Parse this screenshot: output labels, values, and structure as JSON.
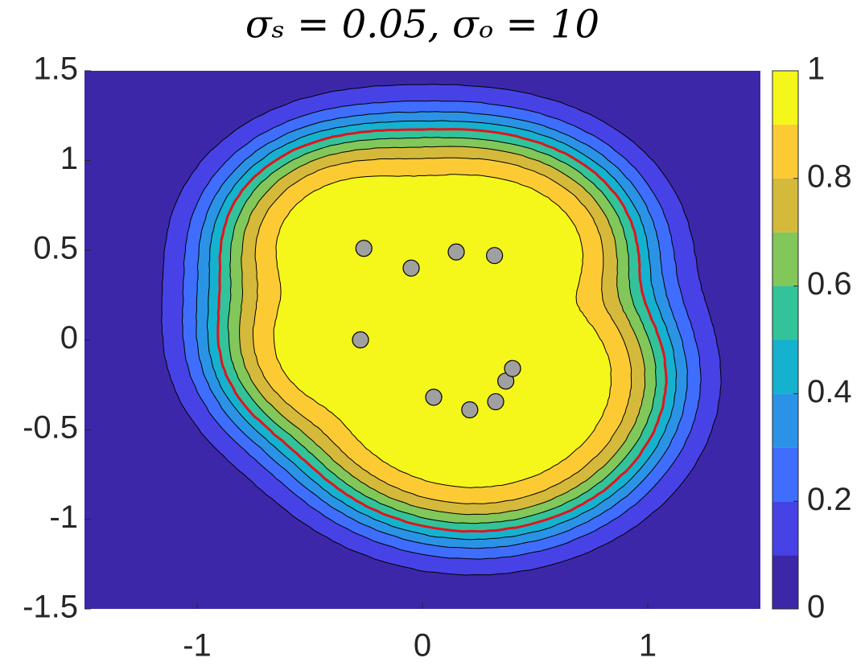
{
  "chart_data": {
    "type": "contour",
    "title": "σₛ = 0.05, σₒ = 10",
    "xlim": [
      -1.5,
      1.5
    ],
    "ylim": [
      -1.5,
      1.5
    ],
    "xticks": [
      -1,
      0,
      1
    ],
    "yticks": [
      -1.5,
      -1,
      -0.5,
      0,
      0.5,
      1,
      1.5
    ],
    "points": {
      "color": "#a0a0a0",
      "x": [
        -0.26,
        -0.05,
        0.15,
        0.32,
        -0.275,
        0.05,
        0.21,
        0.325,
        0.37,
        0.4
      ],
      "y": [
        0.51,
        0.4,
        0.49,
        0.47,
        0.0,
        -0.32,
        -0.39,
        -0.345,
        -0.23,
        -0.16
      ]
    },
    "highlight": {
      "level": 0.5,
      "color": "#e0141b"
    },
    "colorbar": {
      "lim": [
        0,
        1
      ],
      "ticks": [
        0,
        0.2,
        0.4,
        0.6,
        0.8,
        1
      ],
      "levels": [
        0,
        0.1,
        0.2,
        0.3,
        0.4,
        0.5,
        0.6,
        0.7,
        0.8,
        0.9,
        1
      ],
      "colors": [
        "#3d27a9",
        "#4742e6",
        "#3f6dfd",
        "#2b93e6",
        "#15b2cf",
        "#32c39b",
        "#82c75a",
        "#d5b93a",
        "#fccb34",
        "#f5f61a"
      ]
    }
  }
}
